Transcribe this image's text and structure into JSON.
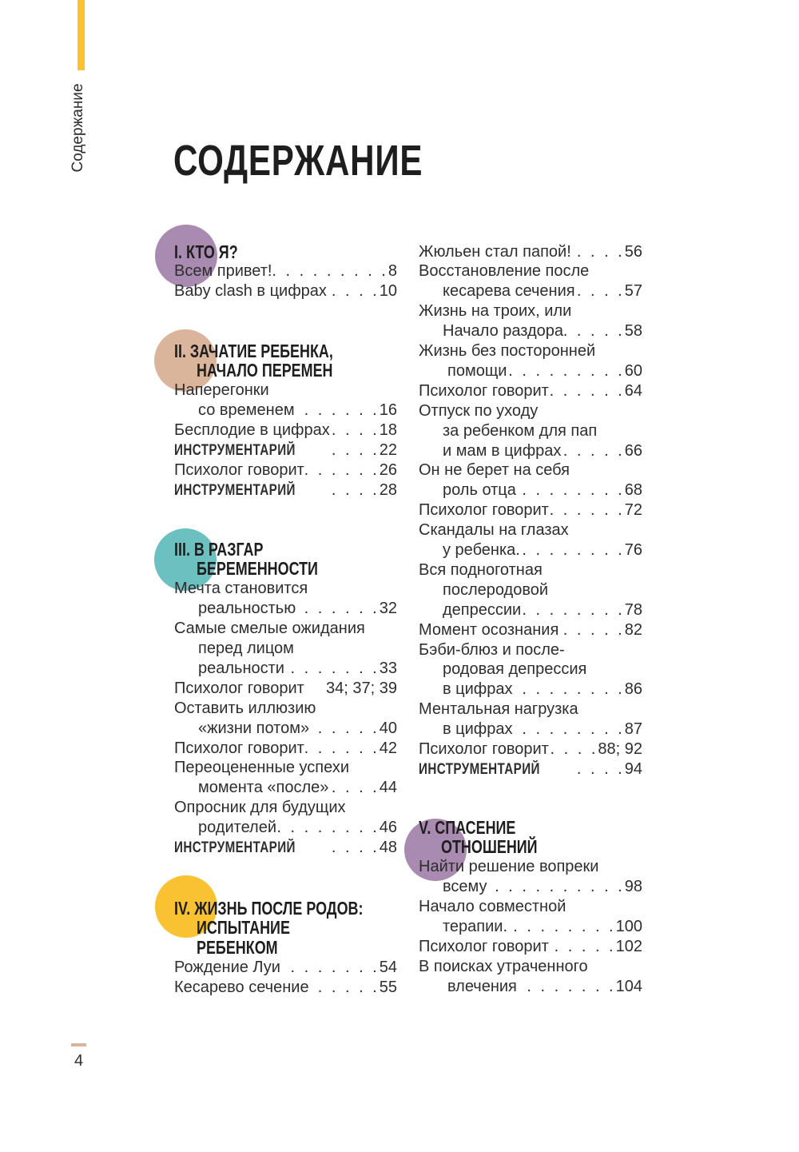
{
  "side_label": "Содержание",
  "title": "СОДЕРЖАНИЕ",
  "page_number": "4",
  "colors": {
    "accent_bar": "#f9c232",
    "circle_1": "#a98ab0",
    "circle_2": "#dbb49c",
    "circle_3": "#6cc0c0",
    "circle_4": "#f9c232",
    "circle_5": "#a98ab0"
  },
  "columns": [
    {
      "sections": [
        {
          "heading": [
            "I. КТО Я?"
          ],
          "color": "#a98ab0",
          "entries": [
            {
              "lines": [
                "Всем привет!"
              ],
              "page": "8"
            },
            {
              "lines": [
                "Baby clash в цифрах"
              ],
              "page": "10"
            }
          ]
        },
        {
          "heading": [
            "II. ЗАЧАТИЕ РЕБЕНКА,",
            "НАЧАЛО ПЕРЕМЕН"
          ],
          "color": "#dbb49c",
          "entries": [
            {
              "lines": [
                "Наперегонки",
                "со временем"
              ],
              "page": "16"
            },
            {
              "lines": [
                "Бесплодие в цифрах"
              ],
              "page": "18"
            },
            {
              "lines": [
                "ИНСТРУМЕНТАРИЙ"
              ],
              "page": "22",
              "tool": true
            },
            {
              "lines": [
                "Психолог говорит"
              ],
              "page": "26"
            },
            {
              "lines": [
                "ИНСТРУМЕНТАРИЙ"
              ],
              "page": "28",
              "tool": true
            }
          ]
        },
        {
          "heading": [
            "III. В РАЗГАР",
            "БЕРЕМЕННОСТИ"
          ],
          "color": "#6cc0c0",
          "entries": [
            {
              "lines": [
                "Мечта становится",
                "реальностью"
              ],
              "page": "32"
            },
            {
              "lines": [
                "Самые смелые ожидания",
                "перед лицом",
                "реальности"
              ],
              "page": "33"
            },
            {
              "lines": [
                "Психолог говорит"
              ],
              "page": "34; 37; 39",
              "noleader": true
            },
            {
              "lines": [
                "Оставить иллюзию",
                "«жизни потом»"
              ],
              "page": "40"
            },
            {
              "lines": [
                "Психолог говорит"
              ],
              "page": "42"
            },
            {
              "lines": [
                "Переоцененные успехи",
                "момента «после»"
              ],
              "page": "44"
            },
            {
              "lines": [
                "Опросник для будущих",
                "родителей"
              ],
              "page": "46"
            },
            {
              "lines": [
                "ИНСТРУМЕНТАРИЙ"
              ],
              "page": "48",
              "tool": true
            }
          ]
        },
        {
          "heading": [
            "IV. ЖИЗНЬ ПОСЛЕ РОДОВ:",
            "ИСПЫТАНИЕ",
            "РЕБЕНКОМ"
          ],
          "color": "#f9c232",
          "entries": [
            {
              "lines": [
                "Рождение Луи"
              ],
              "page": "54"
            },
            {
              "lines": [
                "Кесарево сечение"
              ],
              "page": "55"
            }
          ]
        }
      ]
    },
    {
      "sections": [
        {
          "heading": [],
          "entries": [
            {
              "lines": [
                "Жюльен стал папой!"
              ],
              "page": "56"
            },
            {
              "lines": [
                "Восстановление после",
                "кесарева сечения"
              ],
              "page": "57"
            },
            {
              "lines": [
                "Жизнь на троих, или",
                "Начало раздора"
              ],
              "page": "58"
            },
            {
              "lines": [
                "Жизнь без посторонней",
                "помощи"
              ],
              "page": "60"
            },
            {
              "lines": [
                "Психолог говорит"
              ],
              "page": "64"
            },
            {
              "lines": [
                "Отпуск по уходу",
                "за ребенком для пап",
                "и мам в цифрах"
              ],
              "page": "66"
            },
            {
              "lines": [
                "Он не берет на себя",
                "роль отца"
              ],
              "page": "68"
            },
            {
              "lines": [
                "Психолог говорит"
              ],
              "page": "72"
            },
            {
              "lines": [
                "Скандалы на глазах",
                "у ребенка."
              ],
              "page": "76"
            },
            {
              "lines": [
                "Вся подноготная",
                "послеродовой",
                "депрессии"
              ],
              "page": "78"
            },
            {
              "lines": [
                "Момент осознания"
              ],
              "page": "82"
            },
            {
              "lines": [
                "Бэби-блюз и после-",
                "родовая депрессия",
                "в цифрах"
              ],
              "page": "86"
            },
            {
              "lines": [
                "Ментальная нагрузка",
                "в цифрах"
              ],
              "page": "87"
            },
            {
              "lines": [
                "Психолог говорит"
              ],
              "page": "88; 92"
            },
            {
              "lines": [
                "ИНСТРУМЕНТАРИЙ"
              ],
              "page": "94",
              "tool": true
            }
          ]
        },
        {
          "heading": [
            "V. СПАСЕНИЕ",
            "ОТНОШЕНИЙ"
          ],
          "color": "#a98ab0",
          "entries": [
            {
              "lines": [
                "Найти решение вопреки",
                "всему"
              ],
              "page": "98"
            },
            {
              "lines": [
                "Начало совместной",
                "терапии."
              ],
              "page": "100"
            },
            {
              "lines": [
                "Психолог говорит"
              ],
              "page": "102"
            },
            {
              "lines": [
                "В поисках утраченного",
                "влечения"
              ],
              "page": "104"
            }
          ]
        }
      ]
    }
  ]
}
